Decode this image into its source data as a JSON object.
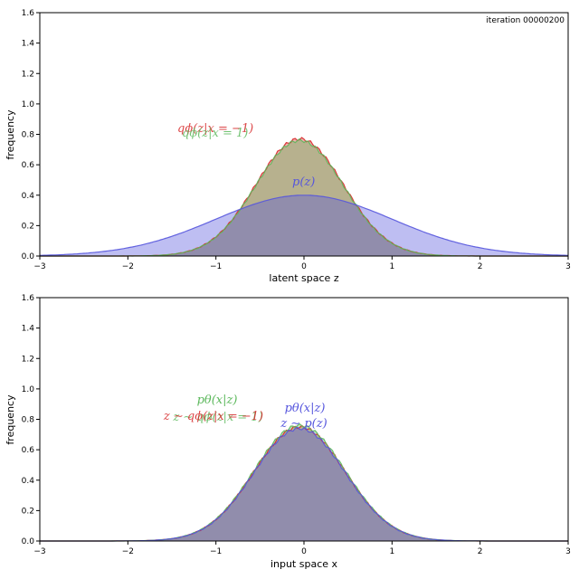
{
  "iteration_label": "iteration 00000200",
  "colors": {
    "red": "#d62728",
    "green": "#5cb85c",
    "blue": "#5555dd"
  },
  "chart_data": [
    {
      "type": "area",
      "xlabel": "latent space z",
      "ylabel": "frequency",
      "xlim": [
        -3,
        3
      ],
      "ylim": [
        0,
        1.6
      ],
      "xticks": [
        "−3",
        "−2",
        "−1",
        "0",
        "1",
        "2",
        "3"
      ],
      "yticks": [
        "0.0",
        "0.2",
        "0.4",
        "0.6",
        "0.8",
        "1.0",
        "1.2",
        "1.4",
        "1.6"
      ],
      "annotations": {
        "red": "qϕ(z|x = −1)",
        "green": "qϕ(z|x = 1)",
        "blue": "p(z)"
      },
      "series": [
        {
          "name": "qϕ(z|x = −1)",
          "color": "#d62728",
          "mean": -0.05,
          "std": 0.5,
          "peak": 0.77
        },
        {
          "name": "qϕ(z|x = 1)",
          "color": "#5cb85c",
          "mean": -0.05,
          "std": 0.5,
          "peak": 0.76
        },
        {
          "name": "p(z)",
          "color": "#5555dd",
          "mean": 0.0,
          "std": 1.0,
          "peak": 0.4
        }
      ]
    },
    {
      "type": "area",
      "xlabel": "input space x",
      "ylabel": "frequency",
      "xlim": [
        -3,
        3
      ],
      "ylim": [
        0,
        1.6
      ],
      "xticks": [
        "−3",
        "−2",
        "−1",
        "0",
        "1",
        "2",
        "3"
      ],
      "yticks": [
        "0.0",
        "0.2",
        "0.4",
        "0.6",
        "0.8",
        "1.0",
        "1.2",
        "1.4",
        "1.6"
      ],
      "annotations": {
        "green_top": "pθ(x|z)",
        "green_bottom": "z ∼ qϕ(z|x = 1)",
        "red_bottom": "z ∼ qϕ(z|x = −1)",
        "blue_top": "pθ(x|z)",
        "blue_bottom": "z ∼ p(z)"
      },
      "series": [
        {
          "name": "red",
          "color": "#d62728",
          "mean": -0.05,
          "std": 0.52,
          "peak": 0.75
        },
        {
          "name": "green",
          "color": "#5cb85c",
          "mean": -0.05,
          "std": 0.52,
          "peak": 0.76
        },
        {
          "name": "blue",
          "color": "#5555dd",
          "mean": -0.05,
          "std": 0.52,
          "peak": 0.74
        }
      ]
    }
  ]
}
